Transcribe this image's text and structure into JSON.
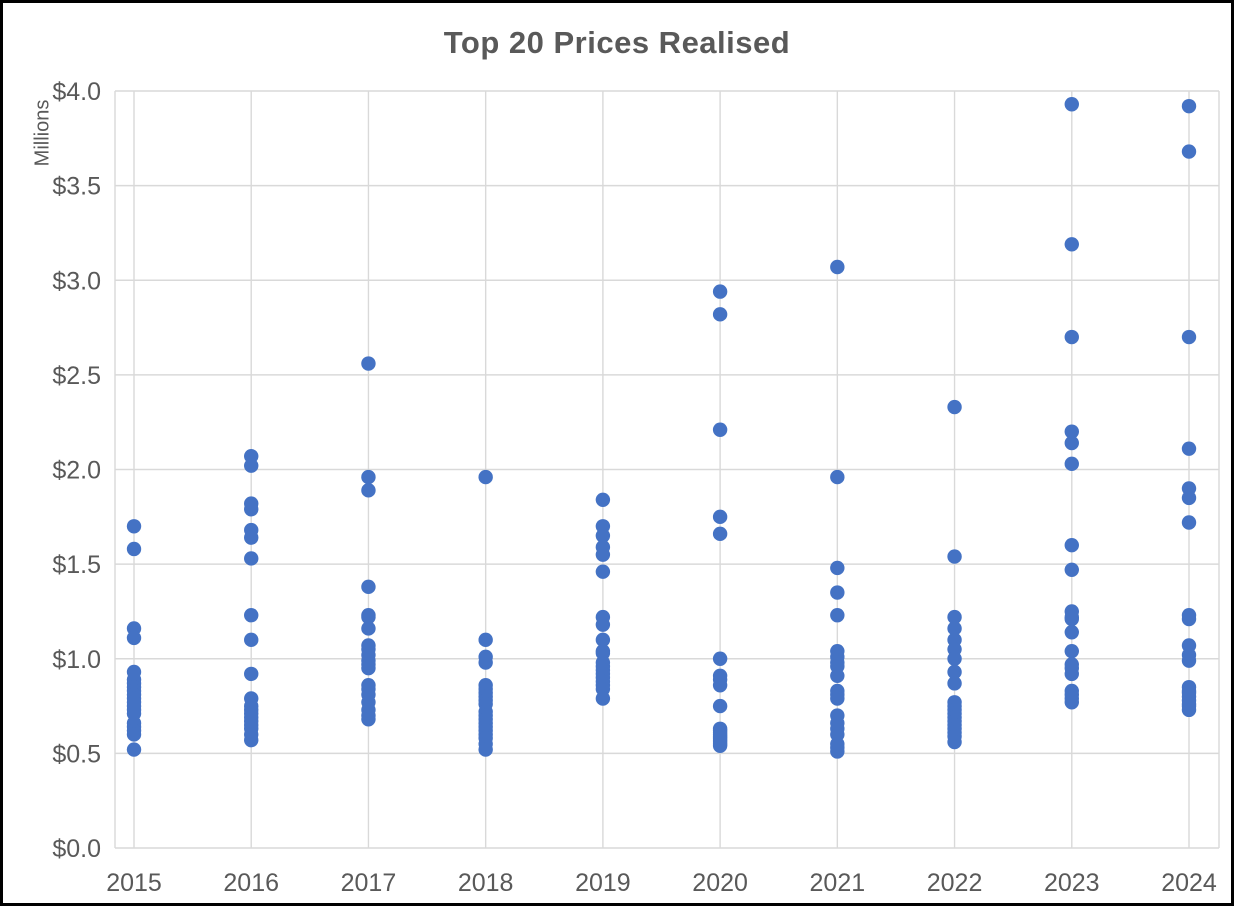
{
  "window": {
    "background": "#ffffff",
    "frame_border_color": "#000000"
  },
  "chart_data": {
    "type": "scatter",
    "title": "Top 20 Prices Realised",
    "ylabel": "Millions",
    "xlabel": "",
    "ylim": [
      0,
      4
    ],
    "ytick_step": 0.5,
    "ytick_labels": [
      "$0.0",
      "$0.5",
      "$1.0",
      "$1.5",
      "$2.0",
      "$2.5",
      "$3.0",
      "$3.5",
      "$4.0"
    ],
    "categories": [
      "2015",
      "2016",
      "2017",
      "2018",
      "2019",
      "2020",
      "2021",
      "2022",
      "2023",
      "2024"
    ],
    "grid": true,
    "legend": "none",
    "marker_color": "#4472C4",
    "gridline_color": "#D9D9D9",
    "text_color": "#595959",
    "series": [
      {
        "name": "2015",
        "values": [
          1.7,
          1.58,
          1.16,
          1.11,
          0.93,
          0.89,
          0.87,
          0.85,
          0.83,
          0.81,
          0.79,
          0.77,
          0.75,
          0.73,
          0.71,
          0.66,
          0.64,
          0.62,
          0.6,
          0.52
        ]
      },
      {
        "name": "2016",
        "values": [
          2.07,
          2.02,
          1.82,
          1.79,
          1.68,
          1.64,
          1.53,
          1.23,
          1.1,
          0.92,
          0.79,
          0.75,
          0.73,
          0.71,
          0.69,
          0.67,
          0.65,
          0.63,
          0.6,
          0.57
        ]
      },
      {
        "name": "2017",
        "values": [
          2.56,
          1.96,
          1.89,
          1.38,
          1.23,
          1.22,
          1.16,
          1.07,
          1.05,
          1.02,
          0.99,
          0.97,
          0.95,
          0.86,
          0.84,
          0.81,
          0.77,
          0.73,
          0.7,
          0.68
        ]
      },
      {
        "name": "2018",
        "values": [
          1.96,
          1.1,
          1.01,
          0.98,
          0.86,
          0.84,
          0.82,
          0.8,
          0.78,
          0.76,
          0.72,
          0.7,
          0.68,
          0.66,
          0.64,
          0.62,
          0.6,
          0.58,
          0.55,
          0.52
        ]
      },
      {
        "name": "2019",
        "values": [
          1.84,
          1.7,
          1.65,
          1.59,
          1.55,
          1.46,
          1.22,
          1.18,
          1.1,
          1.04,
          1.03,
          0.98,
          0.96,
          0.94,
          0.92,
          0.9,
          0.88,
          0.86,
          0.84,
          0.79
        ]
      },
      {
        "name": "2020",
        "values": [
          2.94,
          2.82,
          2.21,
          1.75,
          1.66,
          1.0,
          0.91,
          0.89,
          0.86,
          0.75,
          0.63,
          0.62,
          0.61,
          0.6,
          0.59,
          0.58,
          0.57,
          0.56,
          0.55,
          0.54
        ]
      },
      {
        "name": "2021",
        "values": [
          3.07,
          1.96,
          1.48,
          1.35,
          1.23,
          1.04,
          1.01,
          0.98,
          0.96,
          0.91,
          0.83,
          0.81,
          0.79,
          0.7,
          0.66,
          0.63,
          0.6,
          0.55,
          0.53,
          0.51
        ]
      },
      {
        "name": "2022",
        "values": [
          2.33,
          1.54,
          1.22,
          1.16,
          1.1,
          1.05,
          1.0,
          0.93,
          0.87,
          0.77,
          0.75,
          0.73,
          0.71,
          0.69,
          0.67,
          0.65,
          0.63,
          0.61,
          0.59,
          0.56
        ]
      },
      {
        "name": "2023",
        "values": [
          3.93,
          3.19,
          2.7,
          2.2,
          2.14,
          2.03,
          1.6,
          1.47,
          1.25,
          1.22,
          1.21,
          1.14,
          1.04,
          0.97,
          0.95,
          0.92,
          0.83,
          0.81,
          0.79,
          0.77
        ]
      },
      {
        "name": "2024",
        "values": [
          3.92,
          3.68,
          2.7,
          2.11,
          1.9,
          1.85,
          1.72,
          1.23,
          1.21,
          1.07,
          1.02,
          0.99,
          0.85,
          0.83,
          0.82,
          0.8,
          0.78,
          0.76,
          0.75,
          0.73
        ]
      }
    ]
  }
}
